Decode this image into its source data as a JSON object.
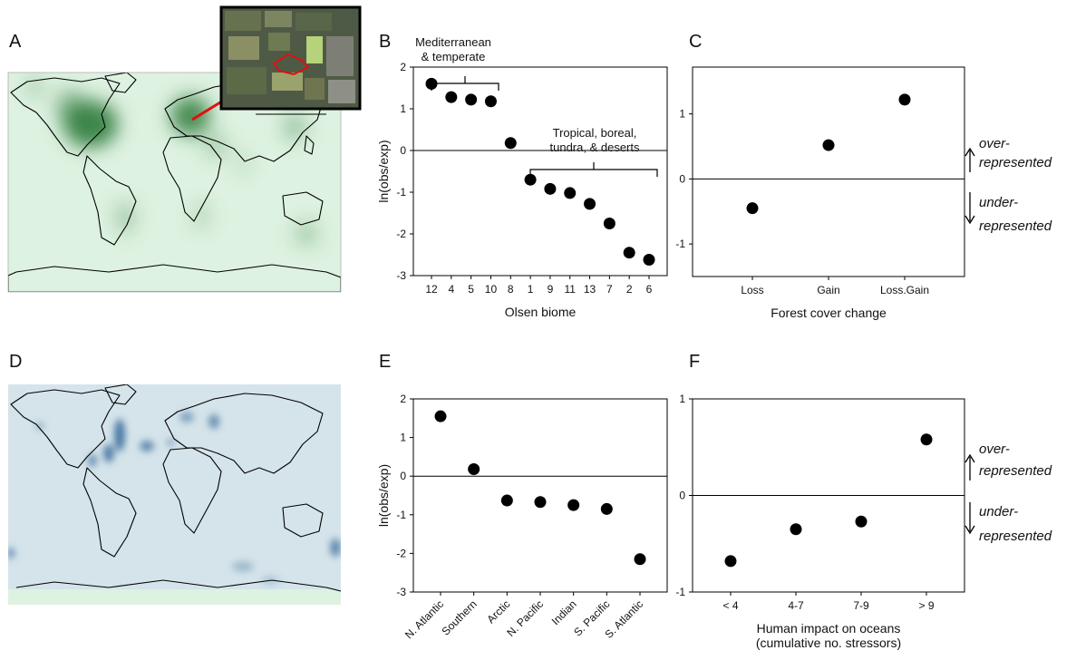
{
  "panels": {
    "A": "A",
    "B": "B",
    "C": "C",
    "D": "D",
    "E": "E",
    "F": "F"
  },
  "colors": {
    "land_map_bg": "#def2e1",
    "land_hotspot": "#2f7a3a",
    "ocean_map_bg": "#d5e4ea",
    "ocean_bottom_strip": "#def2e1",
    "ocean_hotspot": "#3c6e9c",
    "inset_line": "#e01010",
    "points": "#000000"
  },
  "annotations": {
    "b_group1": [
      "Mediterranean",
      "& temperate"
    ],
    "b_group2": [
      "Tropical, boreal,",
      "tundra, & deserts"
    ],
    "c_side_over": [
      "over-",
      "represented"
    ],
    "c_side_under": [
      "under-",
      "represented"
    ],
    "f_side_over": [
      "over-",
      "represented"
    ],
    "f_side_under": [
      "under-",
      "represented"
    ]
  },
  "chart_data": [
    {
      "panel": "B",
      "type": "scatter",
      "categories": [
        "12",
        "4",
        "5",
        "10",
        "8",
        "1",
        "9",
        "11",
        "13",
        "7",
        "2",
        "6"
      ],
      "values": [
        1.6,
        1.28,
        1.22,
        1.18,
        0.18,
        -0.7,
        -0.92,
        -1.02,
        -1.28,
        -1.75,
        -2.45,
        -2.62
      ],
      "xlabel": "Olsen biome",
      "ylabel": "ln(obs/exp)",
      "ylim": [
        -3,
        2
      ],
      "yticks": [
        "-3",
        "-2",
        "-1",
        "0",
        "1",
        "2"
      ],
      "reference_line": 0,
      "grid": false
    },
    {
      "panel": "C",
      "type": "scatter",
      "categories": [
        "Loss",
        "Gain",
        "Loss.Gain"
      ],
      "values": [
        -0.45,
        0.52,
        1.22
      ],
      "xlabel": "Forest cover change",
      "ylabel": "",
      "ylim": [
        -1.5,
        1.6
      ],
      "yticks": [
        "-1",
        "0",
        "1"
      ],
      "reference_line": 0,
      "grid": false
    },
    {
      "panel": "E",
      "type": "scatter",
      "categories": [
        "N. Atlantic",
        "Southern",
        "Arctic",
        "N. Pacific",
        "Indian",
        "S. Pacific",
        "S. Atlantic"
      ],
      "values": [
        1.55,
        0.18,
        -0.63,
        -0.67,
        -0.75,
        -0.85,
        -2.15
      ],
      "xlabel": "",
      "ylabel": "ln(obs/exp)",
      "ylim": [
        -3,
        2
      ],
      "yticks": [
        "-3",
        "-2",
        "-1",
        "0",
        "1",
        "2"
      ],
      "reference_line": 0,
      "grid": false
    },
    {
      "panel": "F",
      "type": "scatter",
      "categories": [
        "< 4",
        "4-7",
        "7-9",
        "> 9"
      ],
      "values": [
        -0.68,
        -0.35,
        -0.27,
        0.58
      ],
      "xlabel": [
        "Human impact on oceans",
        "(cumulative no. stressors)"
      ],
      "ylabel": "",
      "ylim": [
        -1,
        1
      ],
      "yticks": [
        "-1",
        "0",
        "1"
      ],
      "reference_line": 0,
      "grid": false
    }
  ]
}
